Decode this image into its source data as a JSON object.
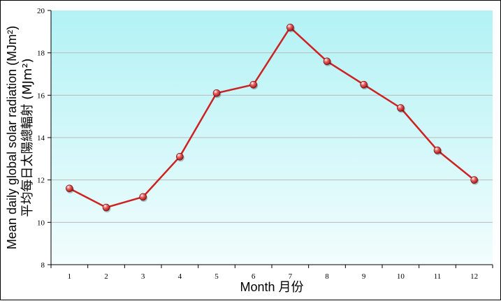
{
  "chart_data": {
    "type": "line",
    "categories": [
      "1",
      "2",
      "3",
      "4",
      "5",
      "6",
      "7",
      "8",
      "9",
      "10",
      "11",
      "12"
    ],
    "series": [
      {
        "values": [
          11.6,
          10.7,
          11.2,
          13.1,
          16.1,
          16.5,
          19.2,
          17.6,
          16.5,
          15.4,
          13.4,
          12.0
        ]
      }
    ],
    "xlabel": "Month 月份",
    "ylabel_line1": "Mean daily global solar radiation (MJm²)",
    "ylabel_line2": "平均每日太陽總輻射 (MJm²)",
    "ylim": [
      8,
      20
    ],
    "yticks": [
      "8",
      "10",
      "12",
      "14",
      "16",
      "18",
      "20"
    ],
    "grid": "horizontal",
    "colors": {
      "line": "#cc2222",
      "marker": "#c01818",
      "background_top": "#b2f2f5",
      "background_bottom": "#f2fdfd",
      "gridline": "#bbbbbb",
      "axis": "#000000"
    }
  }
}
